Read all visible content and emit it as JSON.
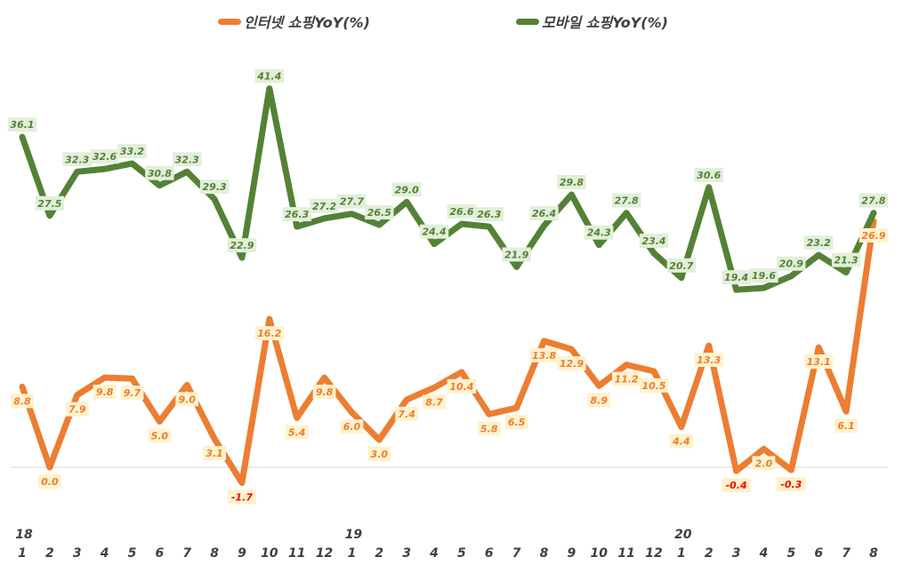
{
  "chart_data": {
    "type": "line",
    "year_labels": [
      {
        "index": 0,
        "label": "18"
      },
      {
        "index": 12,
        "label": "19"
      },
      {
        "index": 24,
        "label": "20"
      }
    ],
    "categories": [
      "1",
      "2",
      "3",
      "4",
      "5",
      "6",
      "7",
      "8",
      "9",
      "10",
      "11",
      "12",
      "1",
      "2",
      "3",
      "4",
      "5",
      "6",
      "7",
      "8",
      "9",
      "10",
      "11",
      "12",
      "1",
      "2",
      "3",
      "4",
      "5",
      "6",
      "7",
      "8"
    ],
    "series": [
      {
        "name": "인터넷 쇼핑YoY(%)",
        "color": "#ED7D31",
        "label_color": "#ED7D31",
        "negative_label_color": "#FF0000",
        "label_bg": "#FFF2CC",
        "values": [
          8.8,
          0.0,
          7.9,
          9.8,
          9.7,
          5.0,
          9.0,
          3.1,
          -1.7,
          16.2,
          5.4,
          9.8,
          6.0,
          3.0,
          7.4,
          8.7,
          10.4,
          5.8,
          6.5,
          13.8,
          12.9,
          8.9,
          11.2,
          10.5,
          4.4,
          13.3,
          -0.4,
          2.0,
          -0.3,
          13.1,
          6.1,
          26.9
        ]
      },
      {
        "name": "모바일 쇼핑YoY(%)",
        "color": "#548235",
        "label_color": "#548235",
        "label_bg": "#E2EFDA",
        "values": [
          36.1,
          27.5,
          32.3,
          32.6,
          33.2,
          30.8,
          32.3,
          29.3,
          22.9,
          41.4,
          26.3,
          27.2,
          27.7,
          26.5,
          29.0,
          24.4,
          26.6,
          26.3,
          21.9,
          26.4,
          29.8,
          24.3,
          27.8,
          23.4,
          20.7,
          30.6,
          19.4,
          19.6,
          20.9,
          23.2,
          21.3,
          27.8
        ]
      }
    ],
    "legend_position": "top",
    "grid": false
  }
}
